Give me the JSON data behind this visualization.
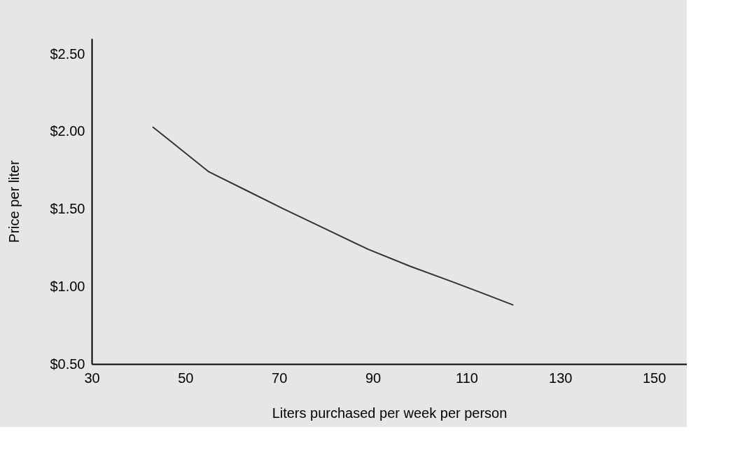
{
  "chart_data": {
    "type": "line",
    "xlabel": "Liters purchased per week per person",
    "ylabel": "Price per liter",
    "x": [
      43,
      55,
      63,
      71,
      80,
      89,
      98,
      107,
      114,
      120
    ],
    "series": [
      {
        "color": "#333333",
        "values": [
          2.03,
          1.74,
          1.62,
          1.5,
          1.37,
          1.24,
          1.13,
          1.03,
          0.95,
          0.88
        ]
      }
    ],
    "xlim": [
      30,
      157
    ],
    "xticks": [
      30,
      50,
      70,
      90,
      110,
      130,
      150
    ],
    "ylim": [
      0.5,
      2.6
    ],
    "yticks": [
      {
        "value": 0.5,
        "label": "$0.50"
      },
      {
        "value": 1.0,
        "label": "$1.00"
      },
      {
        "value": 1.5,
        "label": "$1.50"
      },
      {
        "value": 2.0,
        "label": "$2.00"
      },
      {
        "value": 2.5,
        "label": "$2.50"
      }
    ],
    "grid": false,
    "marker": "none",
    "line_style": "solid"
  }
}
